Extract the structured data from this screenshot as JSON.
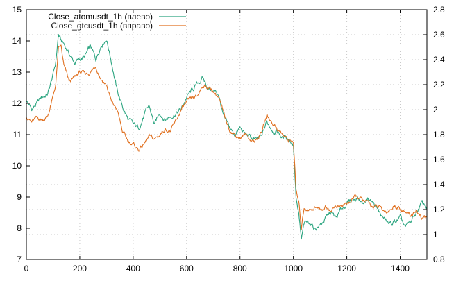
{
  "chart_data": {
    "type": "line",
    "title": "",
    "xlabel": "",
    "ylabel_left": "",
    "ylabel_right": "",
    "grid": true,
    "legend_placement": "top-left",
    "xlim": [
      0,
      1500
    ],
    "ylim_left": [
      7,
      15
    ],
    "ylim_right": [
      0.8,
      2.8
    ],
    "x_ticks": [
      "0",
      "200",
      "400",
      "600",
      "800",
      "1000",
      "1200",
      "1400"
    ],
    "y_left_ticks": [
      "7",
      "8",
      "9",
      "10",
      "11",
      "12",
      "13",
      "14",
      "15"
    ],
    "y_right_ticks": [
      "0.8",
      "1",
      "1.2",
      "1.4",
      "1.6",
      "1.8",
      "2",
      "2.2",
      "2.4",
      "2.6",
      "2.8"
    ],
    "series": [
      {
        "name": "Close_atomusdt_1h  (влево)",
        "axis": "left",
        "color": "#2ca580",
        "x": [
          0,
          20,
          40,
          60,
          80,
          100,
          110,
          120,
          130,
          140,
          160,
          180,
          200,
          220,
          240,
          260,
          280,
          300,
          320,
          340,
          360,
          380,
          400,
          420,
          440,
          460,
          480,
          500,
          520,
          540,
          560,
          580,
          600,
          620,
          640,
          660,
          680,
          700,
          720,
          740,
          760,
          780,
          800,
          820,
          840,
          860,
          880,
          900,
          920,
          940,
          960,
          980,
          1000,
          1010,
          1020,
          1030,
          1040,
          1060,
          1080,
          1100,
          1120,
          1140,
          1160,
          1180,
          1200,
          1220,
          1240,
          1260,
          1280,
          1300,
          1320,
          1340,
          1360,
          1380,
          1400,
          1420,
          1440,
          1460,
          1480,
          1500
        ],
        "y": [
          12.1,
          11.8,
          12.0,
          12.2,
          12.3,
          12.9,
          13.3,
          14.2,
          14.0,
          13.9,
          13.6,
          13.3,
          13.4,
          13.5,
          13.8,
          13.4,
          13.9,
          14.1,
          13.3,
          12.4,
          11.9,
          11.5,
          11.3,
          11.2,
          11.6,
          11.9,
          11.3,
          11.7,
          11.5,
          11.6,
          11.7,
          11.8,
          12.2,
          12.4,
          12.6,
          12.8,
          12.5,
          12.4,
          12.3,
          11.5,
          11.2,
          11.0,
          11.2,
          11.0,
          10.9,
          10.8,
          10.9,
          11.4,
          11.2,
          11.1,
          10.9,
          10.9,
          10.7,
          9.0,
          8.4,
          7.6,
          8.1,
          8.2,
          8.0,
          8.1,
          8.3,
          8.5,
          8.3,
          8.6,
          8.8,
          8.9,
          9.0,
          8.8,
          9.0,
          8.8,
          8.5,
          8.3,
          8.1,
          8.2,
          8.3,
          8.0,
          8.2,
          8.5,
          8.8,
          8.7
        ]
      },
      {
        "name": "Close_gtcusdt_1h  (вправо)",
        "axis": "right",
        "color": "#e07020",
        "x": [
          0,
          20,
          40,
          60,
          80,
          100,
          110,
          120,
          130,
          140,
          160,
          180,
          200,
          220,
          240,
          260,
          280,
          300,
          320,
          340,
          360,
          380,
          400,
          420,
          440,
          460,
          480,
          500,
          520,
          540,
          560,
          580,
          600,
          620,
          640,
          660,
          680,
          700,
          720,
          740,
          760,
          780,
          800,
          820,
          840,
          860,
          880,
          900,
          920,
          940,
          960,
          980,
          1000,
          1010,
          1020,
          1030,
          1040,
          1060,
          1080,
          1100,
          1120,
          1140,
          1160,
          1180,
          1200,
          1220,
          1240,
          1260,
          1280,
          1300,
          1320,
          1340,
          1360,
          1380,
          1400,
          1420,
          1440,
          1460,
          1480,
          1500
        ],
        "y": [
          1.95,
          1.9,
          1.93,
          1.92,
          1.95,
          2.1,
          2.2,
          2.48,
          2.5,
          2.35,
          2.22,
          2.25,
          2.3,
          2.28,
          2.3,
          2.35,
          2.25,
          2.2,
          2.05,
          2.0,
          1.82,
          1.75,
          1.72,
          1.68,
          1.72,
          1.78,
          1.76,
          1.8,
          1.85,
          1.83,
          1.9,
          2.0,
          2.05,
          2.08,
          2.1,
          2.2,
          2.18,
          2.15,
          2.1,
          1.95,
          1.85,
          1.8,
          1.78,
          1.8,
          1.76,
          1.75,
          1.82,
          1.95,
          1.9,
          1.85,
          1.8,
          1.75,
          1.75,
          1.35,
          1.25,
          1.05,
          1.22,
          1.2,
          1.22,
          1.2,
          1.22,
          1.2,
          1.23,
          1.22,
          1.25,
          1.28,
          1.3,
          1.27,
          1.25,
          1.22,
          1.22,
          1.18,
          1.2,
          1.23,
          1.22,
          1.18,
          1.15,
          1.2,
          1.12,
          1.15
        ]
      }
    ]
  }
}
